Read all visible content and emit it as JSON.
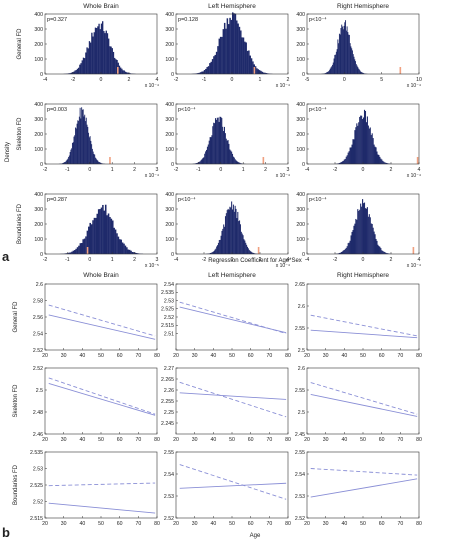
{
  "figure": {
    "panel_a_letter": "a",
    "panel_b_letter": "b",
    "column_titles": [
      "Whole Brain",
      "Left Hemisphere",
      "Right Hemisphere"
    ],
    "row_labels": [
      "General FD",
      "Skeleton FD",
      "Boundaries FD"
    ],
    "density_label": "Density",
    "xaxis_label_a": "Regression Coefficient for Age*Sex",
    "xaxis_label_b": "Age"
  },
  "chart_data": [
    {
      "type": "histogram",
      "panel": "a",
      "rows": [
        {
          "label": "General FD",
          "cells": [
            {
              "p_text": "p=0.327",
              "xlim": [
                -4,
                4
              ],
              "ylim": [
                0,
                400
              ],
              "xticks": [
                -4,
                -2,
                0,
                2,
                4
              ],
              "yticks": [
                0,
                100,
                200,
                300,
                400
              ],
              "xscale_note": "x 10⁻⁴",
              "yscale_note": "",
              "mean": -0.1,
              "sd": 0.75,
              "peak": 330,
              "observed": 1.2
            },
            {
              "p_text": "p=0.128",
              "xlim": [
                -2,
                2
              ],
              "ylim": [
                0,
                400
              ],
              "xticks": [
                -2,
                -1,
                0,
                1,
                2
              ],
              "yticks": [
                0,
                100,
                200,
                300,
                400
              ],
              "xscale_note": "x 10⁻⁴",
              "yscale_note": "",
              "mean": 0.0,
              "sd": 0.42,
              "peak": 390,
              "observed": 0.8
            },
            {
              "p_text": "p<10⁻⁴",
              "xlim": [
                -5,
                10
              ],
              "ylim": [
                0,
                400
              ],
              "xticks": [
                -5,
                0,
                5,
                10
              ],
              "yticks": [
                0,
                100,
                200,
                300,
                400
              ],
              "xscale_note": "x 10⁻⁴",
              "yscale_note": "",
              "mean": 0.0,
              "sd": 0.9,
              "peak": 330,
              "observed": 7.5
            }
          ]
        },
        {
          "label": "Skeleton FD",
          "cells": [
            {
              "p_text": "p=0.003",
              "xlim": [
                -2,
                3
              ],
              "ylim": [
                0,
                400
              ],
              "xticks": [
                -2,
                -1,
                0,
                1,
                2,
                3
              ],
              "yticks": [
                0,
                100,
                200,
                300,
                400
              ],
              "xscale_note": "x 10⁻⁴",
              "yscale_note": "",
              "mean": -0.35,
              "sd": 0.3,
              "peak": 350,
              "observed": 0.9
            },
            {
              "p_text": "p<10⁻⁴",
              "xlim": [
                -2,
                3
              ],
              "ylim": [
                0,
                400
              ],
              "xticks": [
                -2,
                -1,
                0,
                1,
                2,
                3
              ],
              "yticks": [
                0,
                100,
                200,
                300,
                400
              ],
              "xscale_note": "x 10⁻⁴",
              "yscale_note": "",
              "mean": -0.1,
              "sd": 0.35,
              "peak": 300,
              "observed": 1.9
            },
            {
              "p_text": "p<10⁻⁴",
              "xlim": [
                -4,
                4
              ],
              "ylim": [
                0,
                400
              ],
              "xticks": [
                -4,
                -2,
                0,
                2,
                4
              ],
              "yticks": [
                0,
                100,
                200,
                300,
                400
              ],
              "xscale_note": "x 10⁻⁴",
              "yscale_note": "",
              "mean": 0.0,
              "sd": 0.6,
              "peak": 330,
              "observed": 3.9
            }
          ]
        },
        {
          "label": "Boundaries FD",
          "cells": [
            {
              "p_text": "p=0.287",
              "xlim": [
                -2,
                3
              ],
              "ylim": [
                0,
                400
              ],
              "xticks": [
                -2,
                -1,
                0,
                1,
                2,
                3
              ],
              "yticks": [
                0,
                100,
                200,
                300,
                400
              ],
              "xscale_note": "x 10⁻⁵",
              "yscale_note": "",
              "mean": 0.55,
              "sd": 0.55,
              "peak": 310,
              "observed": -0.1
            },
            {
              "p_text": "p<10⁻⁴",
              "xlim": [
                -4,
                4
              ],
              "ylim": [
                0,
                400
              ],
              "xticks": [
                -4,
                -2,
                0,
                2,
                4
              ],
              "yticks": [
                0,
                100,
                200,
                300,
                400
              ],
              "xscale_note": "x 10⁻⁴",
              "yscale_note": "",
              "mean": 0.0,
              "sd": 0.55,
              "peak": 330,
              "observed": 1.9
            },
            {
              "p_text": "p<10⁻⁴",
              "xlim": [
                -4,
                4
              ],
              "ylim": [
                0,
                400
              ],
              "xticks": [
                -4,
                -2,
                0,
                2,
                4
              ],
              "yticks": [
                0,
                100,
                200,
                300,
                400
              ],
              "xscale_note": "x 10⁻⁴",
              "yscale_note": "",
              "mean": 0.0,
              "sd": 0.6,
              "peak": 330,
              "observed": 3.6
            }
          ]
        }
      ],
      "bar_color": "#1f2a6b",
      "observed_color": "#f0a080"
    },
    {
      "type": "line",
      "panel": "b",
      "x": [
        20,
        80
      ],
      "xticks": [
        20,
        30,
        40,
        50,
        60,
        70,
        80
      ],
      "line_color": "#8a8fd6",
      "rows": [
        {
          "label": "General FD",
          "cells": [
            {
              "ylim": [
                2.52,
                2.6
              ],
              "yticks": [
                2.52,
                2.54,
                2.56,
                2.58,
                2.6
              ],
              "ytick_labels": [
                "2.52",
                "2.54",
                "2.56",
                "2.58",
                "2.6"
              ],
              "solid": [
                2.5625,
                2.533
              ],
              "dashed": [
                2.5745,
                2.537
              ]
            },
            {
              "ylim": [
                2.5,
                2.54
              ],
              "yticks": [
                2.5,
                2.51,
                2.515,
                2.52,
                2.525,
                2.53,
                2.535,
                2.54
              ],
              "ytick_labels": [
                "",
                "2.51",
                "2.515",
                "2.52",
                "2.525",
                "2.53",
                "2.535",
                "2.54"
              ],
              "solid": [
                2.526,
                2.5105
              ],
              "dashed": [
                2.529,
                2.51
              ]
            },
            {
              "ylim": [
                2.5,
                2.65
              ],
              "yticks": [
                2.5,
                2.55,
                2.6,
                2.65
              ],
              "ytick_labels": [
                "2.5",
                "2.55",
                "2.6",
                "2.65"
              ],
              "solid": [
                2.545,
                2.528
              ],
              "dashed": [
                2.579,
                2.532
              ]
            }
          ]
        },
        {
          "label": "Skeleton FD",
          "cells": [
            {
              "ylim": [
                2.46,
                2.52
              ],
              "yticks": [
                2.46,
                2.48,
                2.5,
                2.52
              ],
              "ytick_labels": [
                "2.46",
                "2.48",
                "2.5",
                "2.52"
              ],
              "solid": [
                2.506,
                2.477
              ],
              "dashed": [
                2.511,
                2.478
              ]
            },
            {
              "ylim": [
                2.24,
                2.27
              ],
              "yticks": [
                2.245,
                2.25,
                2.255,
                2.26,
                2.265,
                2.27
              ],
              "ytick_labels": [
                "2.245",
                "2.25",
                "2.255",
                "2.26",
                "2.265",
                "2.27"
              ],
              "solid": [
                2.2587,
                2.2557
              ],
              "dashed": [
                2.2635,
                2.2478
              ]
            },
            {
              "ylim": [
                2.45,
                2.6
              ],
              "yticks": [
                2.45,
                2.5,
                2.55,
                2.6
              ],
              "ytick_labels": [
                "2.45",
                "2.5",
                "2.55",
                "2.6"
              ],
              "solid": [
                2.54,
                2.49
              ],
              "dashed": [
                2.567,
                2.495
              ]
            }
          ]
        },
        {
          "label": "Boundaries FD",
          "cells": [
            {
              "ylim": [
                2.515,
                2.535
              ],
              "yticks": [
                2.515,
                2.52,
                2.525,
                2.53,
                2.535
              ],
              "ytick_labels": [
                "2.515",
                "2.52",
                "2.525",
                "2.53",
                "2.535"
              ],
              "solid": [
                2.5195,
                2.5165
              ],
              "dashed": [
                2.5248,
                2.5256
              ]
            },
            {
              "ylim": [
                2.52,
                2.55
              ],
              "yticks": [
                2.52,
                2.53,
                2.54,
                2.55
              ],
              "ytick_labels": [
                "2.52",
                "2.53",
                "2.54",
                "2.55"
              ],
              "solid": [
                2.5335,
                2.5358
              ],
              "dashed": [
                2.5443,
                2.5285
              ]
            },
            {
              "ylim": [
                2.52,
                2.55
              ],
              "yticks": [
                2.52,
                2.53,
                2.54,
                2.55
              ],
              "ytick_labels": [
                "2.52",
                "2.53",
                "2.54",
                "2.55"
              ],
              "solid": [
                2.5295,
                2.5378
              ],
              "dashed": [
                2.5425,
                2.5395
              ]
            }
          ]
        }
      ]
    }
  ]
}
